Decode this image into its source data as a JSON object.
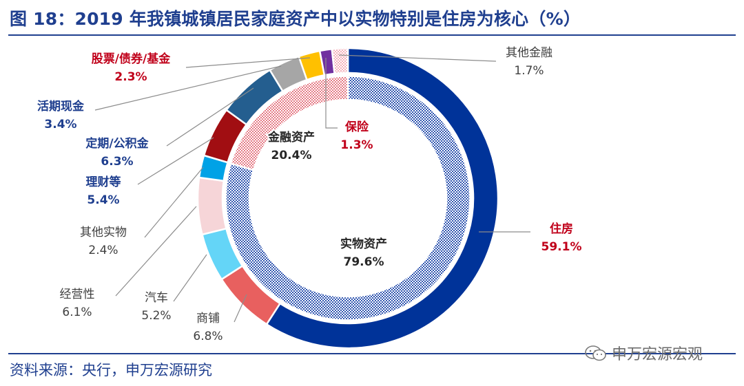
{
  "title": "图 18：2019 年我镇城镇居民家庭资产中以实物特别是住房为核心（%）",
  "source": "资料来源：央行，申万宏源研究",
  "watermark": "申万宏源宏观",
  "colors": {
    "title": "#1f3f8f",
    "blue_label": "#1f3f8f",
    "red_label": "#c0001a",
    "gray_label": "#404040"
  },
  "chart_data": {
    "type": "donut",
    "inner_ring": [
      {
        "name": "实物资产",
        "value": 79.6,
        "color": "#9fb6dc",
        "pattern": "checker-blue"
      },
      {
        "name": "金融资产",
        "value": 20.4,
        "color": "#f0b3b8",
        "pattern": "checker-red"
      }
    ],
    "outer_ring": [
      {
        "name": "住房",
        "value": 59.1,
        "color": "#003399",
        "label_color": "red"
      },
      {
        "name": "商铺",
        "value": 6.8,
        "color": "#e8605f",
        "label_color": "gray"
      },
      {
        "name": "汽车",
        "value": 5.2,
        "color": "#64d5f7",
        "label_color": "gray"
      },
      {
        "name": "经营性",
        "value": 6.1,
        "color": "#f6d5d8",
        "label_color": "gray"
      },
      {
        "name": "其他实物",
        "value": 2.4,
        "color": "#00a2e6",
        "label_color": "gray"
      },
      {
        "name": "理财等",
        "value": 5.4,
        "color": "#a10e12",
        "label_color": "blue"
      },
      {
        "name": "定期/公积金",
        "value": 6.3,
        "color": "#245e8f",
        "label_color": "blue"
      },
      {
        "name": "活期现金",
        "value": 3.4,
        "color": "#a6a6a6",
        "label_color": "blue"
      },
      {
        "name": "股票/债券/基金",
        "value": 2.3,
        "color": "#ffc000",
        "label_color": "red"
      },
      {
        "name": "保险",
        "value": 1.3,
        "color": "#7030a0",
        "label_color": "red"
      },
      {
        "name": "其他金融",
        "value": 1.7,
        "color": "#f6d5d8",
        "label_color": "gray",
        "pattern": "checker-pink"
      }
    ],
    "labels": {
      "住房": {
        "name": "住房",
        "value": "59.1%"
      },
      "商铺": {
        "name": "商铺",
        "value": "6.8%"
      },
      "汽车": {
        "name": "汽车",
        "value": "5.2%"
      },
      "经营性": {
        "name": "经营性",
        "value": "6.1%"
      },
      "其他实物": {
        "name": "其他实物",
        "value": "2.4%"
      },
      "理财等": {
        "name": "理财等",
        "value": "5.4%"
      },
      "定期公积金": {
        "name": "定期/公积金",
        "value": "6.3%"
      },
      "活期现金": {
        "name": "活期现金",
        "value": "3.4%"
      },
      "股票债券基金": {
        "name": "股票/债券/基金",
        "value": "2.3%"
      },
      "保险": {
        "name": "保险",
        "value": "1.3%"
      },
      "其他金融": {
        "name": "其他金融",
        "value": "1.7%"
      },
      "实物资产": {
        "name": "实物资产",
        "value": "79.6%"
      },
      "金融资产": {
        "name": "金融资产",
        "value": "20.4%"
      }
    }
  }
}
